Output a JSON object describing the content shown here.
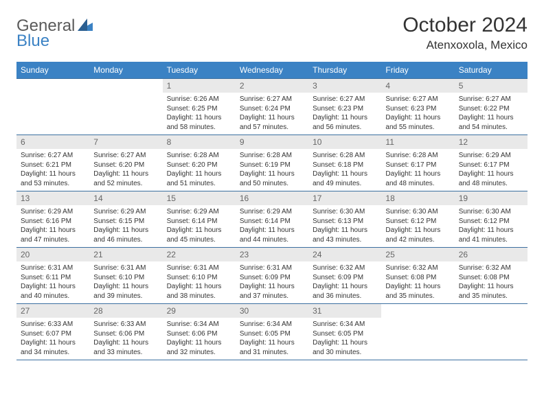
{
  "logo": {
    "left": "General",
    "right": "Blue"
  },
  "title": "October 2024",
  "location": "Atenxoxola, Mexico",
  "colors": {
    "header_bg": "#3b82c4",
    "header_text": "#ffffff",
    "daynum_bg": "#e9e9e9",
    "daynum_text": "#666666",
    "cell_text": "#333333",
    "rule": "#3b6fa0",
    "logo_left": "#5a5a5a",
    "logo_right": "#3b82c4"
  },
  "weekday_labels": [
    "Sunday",
    "Monday",
    "Tuesday",
    "Wednesday",
    "Thursday",
    "Friday",
    "Saturday"
  ],
  "weeks": [
    [
      {
        "empty": true
      },
      {
        "empty": true
      },
      {
        "day": "1",
        "sunrise": "Sunrise: 6:26 AM",
        "sunset": "Sunset: 6:25 PM",
        "daylight": "Daylight: 11 hours and 58 minutes."
      },
      {
        "day": "2",
        "sunrise": "Sunrise: 6:27 AM",
        "sunset": "Sunset: 6:24 PM",
        "daylight": "Daylight: 11 hours and 57 minutes."
      },
      {
        "day": "3",
        "sunrise": "Sunrise: 6:27 AM",
        "sunset": "Sunset: 6:23 PM",
        "daylight": "Daylight: 11 hours and 56 minutes."
      },
      {
        "day": "4",
        "sunrise": "Sunrise: 6:27 AM",
        "sunset": "Sunset: 6:23 PM",
        "daylight": "Daylight: 11 hours and 55 minutes."
      },
      {
        "day": "5",
        "sunrise": "Sunrise: 6:27 AM",
        "sunset": "Sunset: 6:22 PM",
        "daylight": "Daylight: 11 hours and 54 minutes."
      }
    ],
    [
      {
        "day": "6",
        "sunrise": "Sunrise: 6:27 AM",
        "sunset": "Sunset: 6:21 PM",
        "daylight": "Daylight: 11 hours and 53 minutes."
      },
      {
        "day": "7",
        "sunrise": "Sunrise: 6:27 AM",
        "sunset": "Sunset: 6:20 PM",
        "daylight": "Daylight: 11 hours and 52 minutes."
      },
      {
        "day": "8",
        "sunrise": "Sunrise: 6:28 AM",
        "sunset": "Sunset: 6:20 PM",
        "daylight": "Daylight: 11 hours and 51 minutes."
      },
      {
        "day": "9",
        "sunrise": "Sunrise: 6:28 AM",
        "sunset": "Sunset: 6:19 PM",
        "daylight": "Daylight: 11 hours and 50 minutes."
      },
      {
        "day": "10",
        "sunrise": "Sunrise: 6:28 AM",
        "sunset": "Sunset: 6:18 PM",
        "daylight": "Daylight: 11 hours and 49 minutes."
      },
      {
        "day": "11",
        "sunrise": "Sunrise: 6:28 AM",
        "sunset": "Sunset: 6:17 PM",
        "daylight": "Daylight: 11 hours and 48 minutes."
      },
      {
        "day": "12",
        "sunrise": "Sunrise: 6:29 AM",
        "sunset": "Sunset: 6:17 PM",
        "daylight": "Daylight: 11 hours and 48 minutes."
      }
    ],
    [
      {
        "day": "13",
        "sunrise": "Sunrise: 6:29 AM",
        "sunset": "Sunset: 6:16 PM",
        "daylight": "Daylight: 11 hours and 47 minutes."
      },
      {
        "day": "14",
        "sunrise": "Sunrise: 6:29 AM",
        "sunset": "Sunset: 6:15 PM",
        "daylight": "Daylight: 11 hours and 46 minutes."
      },
      {
        "day": "15",
        "sunrise": "Sunrise: 6:29 AM",
        "sunset": "Sunset: 6:14 PM",
        "daylight": "Daylight: 11 hours and 45 minutes."
      },
      {
        "day": "16",
        "sunrise": "Sunrise: 6:29 AM",
        "sunset": "Sunset: 6:14 PM",
        "daylight": "Daylight: 11 hours and 44 minutes."
      },
      {
        "day": "17",
        "sunrise": "Sunrise: 6:30 AM",
        "sunset": "Sunset: 6:13 PM",
        "daylight": "Daylight: 11 hours and 43 minutes."
      },
      {
        "day": "18",
        "sunrise": "Sunrise: 6:30 AM",
        "sunset": "Sunset: 6:12 PM",
        "daylight": "Daylight: 11 hours and 42 minutes."
      },
      {
        "day": "19",
        "sunrise": "Sunrise: 6:30 AM",
        "sunset": "Sunset: 6:12 PM",
        "daylight": "Daylight: 11 hours and 41 minutes."
      }
    ],
    [
      {
        "day": "20",
        "sunrise": "Sunrise: 6:31 AM",
        "sunset": "Sunset: 6:11 PM",
        "daylight": "Daylight: 11 hours and 40 minutes."
      },
      {
        "day": "21",
        "sunrise": "Sunrise: 6:31 AM",
        "sunset": "Sunset: 6:10 PM",
        "daylight": "Daylight: 11 hours and 39 minutes."
      },
      {
        "day": "22",
        "sunrise": "Sunrise: 6:31 AM",
        "sunset": "Sunset: 6:10 PM",
        "daylight": "Daylight: 11 hours and 38 minutes."
      },
      {
        "day": "23",
        "sunrise": "Sunrise: 6:31 AM",
        "sunset": "Sunset: 6:09 PM",
        "daylight": "Daylight: 11 hours and 37 minutes."
      },
      {
        "day": "24",
        "sunrise": "Sunrise: 6:32 AM",
        "sunset": "Sunset: 6:09 PM",
        "daylight": "Daylight: 11 hours and 36 minutes."
      },
      {
        "day": "25",
        "sunrise": "Sunrise: 6:32 AM",
        "sunset": "Sunset: 6:08 PM",
        "daylight": "Daylight: 11 hours and 35 minutes."
      },
      {
        "day": "26",
        "sunrise": "Sunrise: 6:32 AM",
        "sunset": "Sunset: 6:08 PM",
        "daylight": "Daylight: 11 hours and 35 minutes."
      }
    ],
    [
      {
        "day": "27",
        "sunrise": "Sunrise: 6:33 AM",
        "sunset": "Sunset: 6:07 PM",
        "daylight": "Daylight: 11 hours and 34 minutes."
      },
      {
        "day": "28",
        "sunrise": "Sunrise: 6:33 AM",
        "sunset": "Sunset: 6:06 PM",
        "daylight": "Daylight: 11 hours and 33 minutes."
      },
      {
        "day": "29",
        "sunrise": "Sunrise: 6:34 AM",
        "sunset": "Sunset: 6:06 PM",
        "daylight": "Daylight: 11 hours and 32 minutes."
      },
      {
        "day": "30",
        "sunrise": "Sunrise: 6:34 AM",
        "sunset": "Sunset: 6:05 PM",
        "daylight": "Daylight: 11 hours and 31 minutes."
      },
      {
        "day": "31",
        "sunrise": "Sunrise: 6:34 AM",
        "sunset": "Sunset: 6:05 PM",
        "daylight": "Daylight: 11 hours and 30 minutes."
      },
      {
        "empty": true
      },
      {
        "empty": true
      }
    ]
  ]
}
